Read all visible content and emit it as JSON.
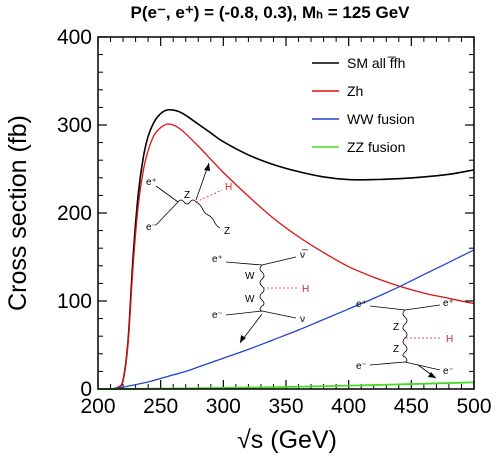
{
  "chart_data": {
    "type": "line",
    "title": "P(e⁻, e⁺) = (-0.8, 0.3),   Mₕ = 125 GeV",
    "xlabel": "√s (GeV)",
    "ylabel": "Cross section (fb)",
    "xlim": [
      200,
      500
    ],
    "ylim": [
      0,
      400
    ],
    "xticks": [
      "200",
      "250",
      "300",
      "350",
      "400",
      "450",
      "500"
    ],
    "yticks": [
      "0",
      "100",
      "200",
      "300",
      "400"
    ],
    "legend_position": "top-right",
    "series": [
      {
        "name": "SM all f̅fh",
        "color": "#000000",
        "x": [
          212,
          216,
          220,
          224,
          228,
          232,
          236,
          240,
          245,
          250,
          255,
          260,
          265,
          270,
          280,
          290,
          300,
          320,
          340,
          360,
          380,
          400,
          420,
          440,
          460,
          480,
          500
        ],
        "y": [
          0,
          2,
          10,
          55,
          150,
          220,
          262,
          287,
          304,
          313,
          317,
          317,
          315,
          311,
          301,
          291,
          281,
          266,
          255,
          247,
          241,
          238,
          238,
          239,
          241,
          244,
          249
        ]
      },
      {
        "name": "Zh",
        "color": "#dd1111",
        "x": [
          212,
          216,
          220,
          224,
          228,
          232,
          236,
          240,
          245,
          250,
          255,
          260,
          265,
          270,
          280,
          290,
          300,
          320,
          340,
          360,
          380,
          400,
          420,
          440,
          460,
          480,
          500
        ],
        "y": [
          0,
          2,
          10,
          52,
          140,
          207,
          247,
          271,
          289,
          297,
          301,
          300,
          296,
          290,
          276,
          261,
          246,
          219,
          194,
          173,
          155,
          139,
          127,
          117,
          109,
          103,
          97
        ]
      },
      {
        "name": "WW fusion",
        "color": "#2244cc",
        "x": [
          210,
          220,
          230,
          240,
          250,
          260,
          270,
          280,
          290,
          300,
          320,
          340,
          360,
          380,
          400,
          420,
          440,
          460,
          480,
          500
        ],
        "y": [
          0,
          2,
          5,
          8,
          12,
          16,
          20,
          25,
          30,
          35,
          45,
          56,
          67,
          79,
          91,
          103,
          116,
          130,
          144,
          158
        ]
      },
      {
        "name": "ZZ fusion",
        "color": "#44dd22",
        "x": [
          200,
          250,
          300,
          350,
          400,
          450,
          500
        ],
        "y": [
          0,
          0.4,
          1.2,
          2.3,
          3.8,
          5.6,
          7.5
        ]
      }
    ],
    "annotations": {
      "zh_diagram": {
        "eplus": "e⁺",
        "eminus": "e⁻",
        "z": "Z",
        "z2": "Z",
        "h": "H"
      },
      "ww_diagram": {
        "eplus": "e⁺",
        "eminus": "e⁻",
        "nubar": "ν̅",
        "nu": "ν",
        "w1": "W",
        "w2": "W",
        "h": "H"
      },
      "zz_diagram": {
        "eplus": "e⁺",
        "eminus": "e⁻",
        "eplus_out": "e⁺",
        "eminus_out": "e⁻",
        "z1": "Z",
        "z2": "Z",
        "h": "H"
      }
    }
  }
}
